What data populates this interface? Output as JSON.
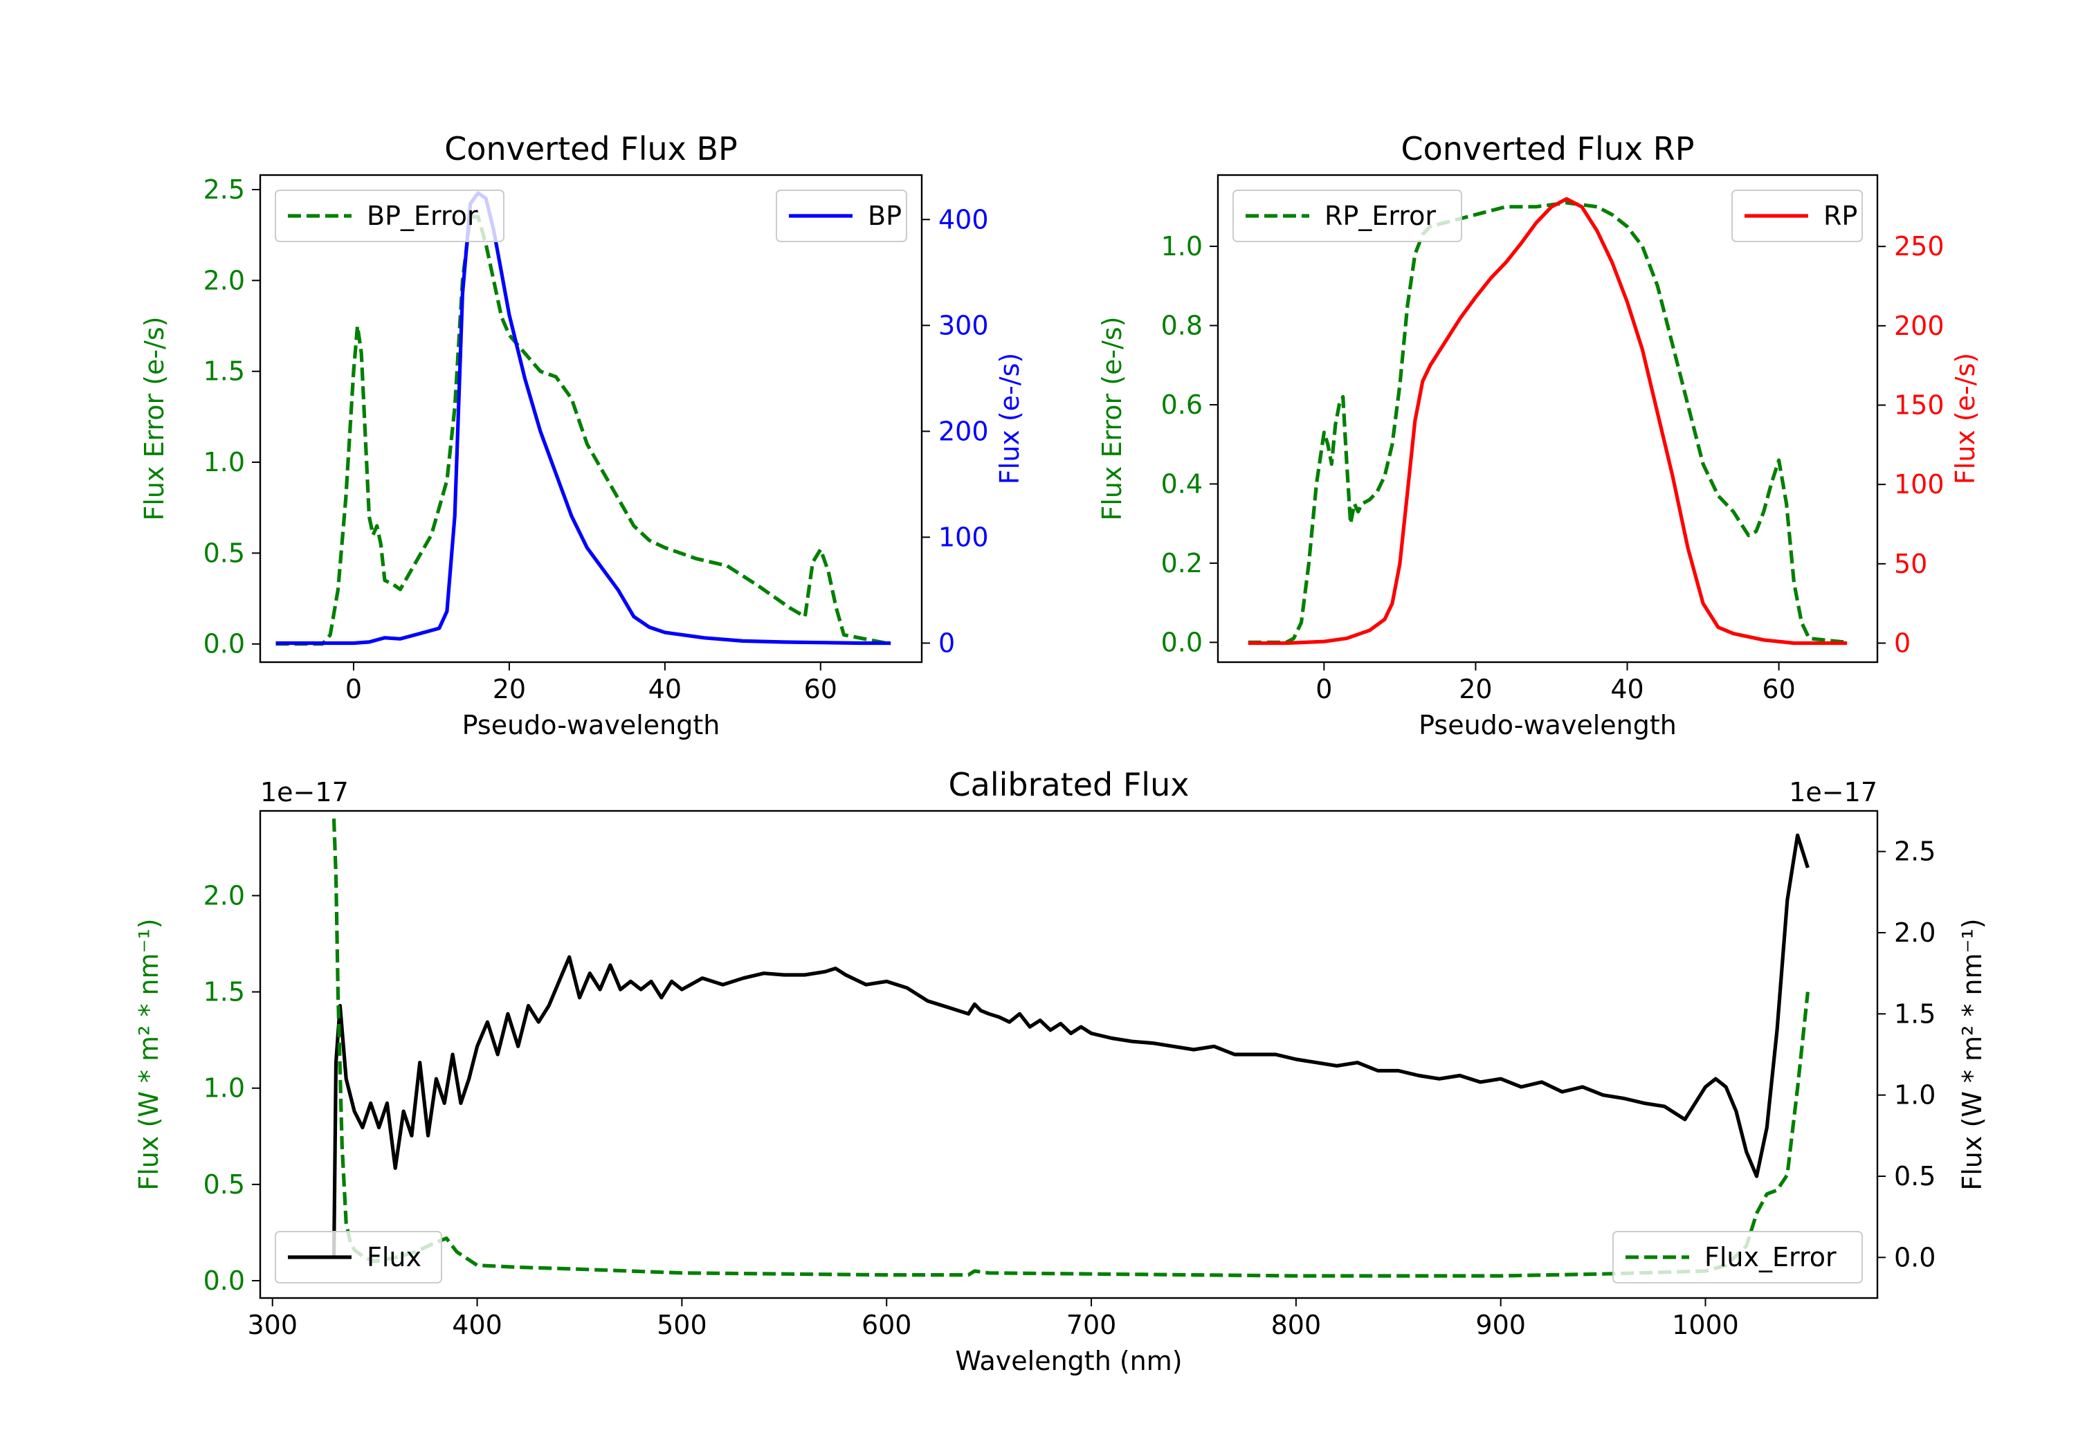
{
  "chart_data": [
    {
      "id": "bp",
      "type": "line",
      "title": "Converted Flux BP",
      "xlabel": "Pseudo-wavelength",
      "xlim": [
        -12,
        73
      ],
      "xticks": [
        0,
        20,
        40,
        60
      ],
      "left_axis": {
        "label": "Flux Error (e-/s)",
        "color": "#008000",
        "lim": [
          -0.1,
          2.58
        ],
        "ticks": [
          0.0,
          0.5,
          1.0,
          1.5,
          2.0,
          2.5
        ],
        "decimals": 1
      },
      "right_axis": {
        "label": "Flux (e-/s)",
        "color": "#0000ff",
        "lim": [
          -18,
          442
        ],
        "ticks": [
          0,
          100,
          200,
          300,
          400
        ],
        "decimals": 0
      },
      "series": [
        {
          "name": "BP_Error",
          "axis": "left",
          "color": "#008000",
          "dash": true,
          "x": [
            -10,
            -4,
            -3,
            -2,
            -1,
            0,
            0.5,
            1,
            2,
            2.5,
            3,
            3.5,
            4,
            5,
            6,
            8,
            10,
            12,
            13,
            14,
            15,
            16,
            17,
            18,
            19,
            20,
            22,
            24,
            26,
            28,
            30,
            32,
            34,
            36,
            38,
            40,
            44,
            48,
            52,
            56,
            58,
            59,
            60,
            61,
            62,
            63,
            69
          ],
          "values": [
            0.0,
            0.0,
            0.05,
            0.3,
            0.8,
            1.5,
            1.75,
            1.6,
            0.7,
            0.6,
            0.65,
            0.55,
            0.35,
            0.33,
            0.3,
            0.45,
            0.6,
            0.9,
            1.3,
            2.0,
            2.35,
            2.35,
            2.2,
            2.0,
            1.8,
            1.7,
            1.6,
            1.5,
            1.47,
            1.35,
            1.1,
            0.95,
            0.8,
            0.65,
            0.57,
            0.53,
            0.47,
            0.43,
            0.32,
            0.2,
            0.15,
            0.45,
            0.52,
            0.4,
            0.2,
            0.05,
            0.0
          ]
        },
        {
          "name": "BP",
          "axis": "right",
          "color": "#0000ff",
          "dash": false,
          "x": [
            -10,
            -5,
            0,
            2,
            4,
            6,
            8,
            10,
            11,
            12,
            13,
            14,
            15,
            16,
            17,
            18,
            19,
            20,
            22,
            24,
            26,
            28,
            30,
            32,
            34,
            36,
            38,
            40,
            45,
            50,
            55,
            60,
            65,
            69
          ],
          "values": [
            0,
            0,
            0,
            1,
            5,
            4,
            8,
            12,
            14,
            30,
            120,
            330,
            415,
            425,
            420,
            390,
            350,
            310,
            250,
            200,
            160,
            120,
            90,
            70,
            50,
            25,
            15,
            10,
            5,
            2,
            1,
            0.5,
            0,
            0
          ]
        }
      ],
      "legend": [
        {
          "label": "BP_Error",
          "position": "upper-left",
          "series": 0
        },
        {
          "label": "BP",
          "position": "upper-right",
          "series": 1
        }
      ]
    },
    {
      "id": "rp",
      "type": "line",
      "title": "Converted Flux RP",
      "xlabel": "Pseudo-wavelength",
      "xlim": [
        -14,
        73
      ],
      "xticks": [
        0,
        20,
        40,
        60
      ],
      "left_axis": {
        "label": "Flux Error (e-/s)",
        "color": "#008000",
        "lim": [
          -0.05,
          1.18
        ],
        "ticks": [
          0.0,
          0.2,
          0.4,
          0.6,
          0.8,
          1.0
        ],
        "decimals": 1
      },
      "right_axis": {
        "label": "Flux (e-/s)",
        "color": "#ff0000",
        "lim": [
          -12,
          295
        ],
        "ticks": [
          0,
          50,
          100,
          150,
          200,
          250
        ],
        "decimals": 0
      },
      "series": [
        {
          "name": "RP_Error",
          "axis": "left",
          "color": "#008000",
          "dash": true,
          "x": [
            -10,
            -5,
            -4,
            -3,
            -2,
            -1,
            0,
            0.5,
            1,
            1.5,
            2,
            2.5,
            3,
            3.5,
            4,
            4.5,
            5,
            6,
            7,
            8,
            9,
            10,
            11,
            12,
            13,
            14,
            16,
            20,
            24,
            28,
            32,
            36,
            38,
            40,
            42,
            44,
            46,
            48,
            50,
            52,
            54,
            55,
            56,
            57,
            58,
            59,
            60,
            61,
            62,
            63,
            64,
            69
          ],
          "values": [
            0,
            0,
            0.01,
            0.05,
            0.2,
            0.4,
            0.53,
            0.5,
            0.45,
            0.55,
            0.6,
            0.62,
            0.45,
            0.3,
            0.35,
            0.33,
            0.35,
            0.36,
            0.38,
            0.42,
            0.5,
            0.65,
            0.85,
            0.98,
            1.03,
            1.05,
            1.06,
            1.08,
            1.1,
            1.1,
            1.11,
            1.1,
            1.08,
            1.05,
            1.0,
            0.9,
            0.75,
            0.6,
            0.45,
            0.37,
            0.33,
            0.3,
            0.27,
            0.28,
            0.33,
            0.4,
            0.46,
            0.35,
            0.15,
            0.05,
            0.01,
            0
          ]
        },
        {
          "name": "RP",
          "axis": "right",
          "color": "#ff0000",
          "dash": false,
          "x": [
            -10,
            -5,
            0,
            3,
            6,
            8,
            9,
            10,
            11,
            12,
            13,
            14,
            16,
            18,
            20,
            22,
            24,
            26,
            28,
            30,
            32,
            34,
            36,
            38,
            40,
            42,
            44,
            46,
            48,
            50,
            52,
            54,
            58,
            62,
            65,
            69
          ],
          "values": [
            0,
            0,
            1,
            3,
            8,
            15,
            25,
            50,
            95,
            140,
            165,
            175,
            190,
            205,
            218,
            230,
            240,
            252,
            265,
            275,
            280,
            275,
            260,
            240,
            215,
            185,
            145,
            105,
            60,
            25,
            10,
            6,
            2,
            0,
            0,
            0
          ]
        }
      ],
      "legend": [
        {
          "label": "RP_Error",
          "position": "upper-left",
          "series": 0
        },
        {
          "label": "RP",
          "position": "upper-right",
          "series": 1
        }
      ]
    },
    {
      "id": "cal",
      "type": "line",
      "title": "Calibrated Flux",
      "xlabel": "Wavelength (nm)",
      "xlim": [
        294,
        1084
      ],
      "xticks": [
        300,
        400,
        500,
        600,
        700,
        800,
        900,
        1000
      ],
      "left_axis": {
        "label": "Flux (W * m² * nm⁻¹)",
        "color": "#008000",
        "lim": [
          -0.09,
          2.44
        ],
        "ticks": [
          0.0,
          0.5,
          1.0,
          1.5,
          2.0
        ],
        "decimals": 1,
        "offset": "1e−17"
      },
      "right_axis": {
        "label": "Flux (W * m² * nm⁻¹)",
        "color": "#000000",
        "lim": [
          -0.25,
          2.75
        ],
        "ticks": [
          0.0,
          0.5,
          1.0,
          1.5,
          2.0,
          2.5
        ],
        "decimals": 1,
        "offset": "1e−17"
      },
      "series": [
        {
          "name": "Flux",
          "axis": "right",
          "color": "#000000",
          "dash": false,
          "x": [
            330,
            331,
            333,
            336,
            340,
            344,
            348,
            352,
            356,
            360,
            364,
            368,
            372,
            376,
            380,
            384,
            388,
            392,
            396,
            400,
            405,
            410,
            415,
            420,
            425,
            430,
            435,
            440,
            445,
            450,
            455,
            460,
            465,
            470,
            475,
            480,
            485,
            490,
            495,
            500,
            510,
            520,
            530,
            540,
            550,
            560,
            570,
            575,
            580,
            590,
            600,
            610,
            620,
            630,
            640,
            643,
            646,
            650,
            655,
            660,
            665,
            670,
            675,
            680,
            685,
            690,
            695,
            700,
            710,
            720,
            730,
            740,
            750,
            760,
            770,
            780,
            790,
            800,
            810,
            820,
            830,
            840,
            850,
            860,
            870,
            880,
            890,
            900,
            910,
            920,
            930,
            940,
            950,
            960,
            970,
            980,
            990,
            1000,
            1005,
            1010,
            1015,
            1020,
            1025,
            1030,
            1035,
            1040,
            1045,
            1050
          ],
          "values": [
            0.0,
            1.2,
            1.55,
            1.1,
            0.9,
            0.8,
            0.95,
            0.8,
            0.95,
            0.55,
            0.9,
            0.75,
            1.2,
            0.75,
            1.1,
            0.95,
            1.25,
            0.95,
            1.1,
            1.3,
            1.45,
            1.25,
            1.5,
            1.3,
            1.55,
            1.45,
            1.55,
            1.7,
            1.85,
            1.6,
            1.75,
            1.65,
            1.8,
            1.65,
            1.7,
            1.65,
            1.7,
            1.6,
            1.7,
            1.65,
            1.72,
            1.68,
            1.72,
            1.75,
            1.74,
            1.74,
            1.76,
            1.78,
            1.74,
            1.68,
            1.7,
            1.66,
            1.58,
            1.54,
            1.5,
            1.56,
            1.52,
            1.5,
            1.48,
            1.45,
            1.5,
            1.42,
            1.46,
            1.4,
            1.44,
            1.38,
            1.42,
            1.38,
            1.35,
            1.33,
            1.32,
            1.3,
            1.28,
            1.3,
            1.25,
            1.25,
            1.25,
            1.22,
            1.2,
            1.18,
            1.2,
            1.15,
            1.15,
            1.12,
            1.1,
            1.12,
            1.08,
            1.1,
            1.05,
            1.08,
            1.02,
            1.05,
            1.0,
            0.98,
            0.95,
            0.93,
            0.85,
            1.05,
            1.1,
            1.05,
            0.9,
            0.65,
            0.5,
            0.8,
            1.4,
            2.2,
            2.6,
            2.4
          ]
        },
        {
          "name": "Flux_Error",
          "axis": "left",
          "color": "#008000",
          "dash": true,
          "x": [
            330,
            331,
            332,
            334,
            336,
            338,
            340,
            345,
            350,
            360,
            370,
            380,
            385,
            390,
            400,
            420,
            450,
            500,
            550,
            600,
            640,
            643,
            650,
            700,
            750,
            800,
            850,
            900,
            950,
            1000,
            1010,
            1020,
            1025,
            1030,
            1035,
            1040,
            1045,
            1050
          ],
          "values": [
            2.4,
            2.1,
            1.5,
            0.7,
            0.3,
            0.2,
            0.16,
            0.12,
            0.1,
            0.12,
            0.15,
            0.2,
            0.22,
            0.15,
            0.08,
            0.07,
            0.06,
            0.04,
            0.035,
            0.03,
            0.03,
            0.05,
            0.04,
            0.035,
            0.03,
            0.025,
            0.025,
            0.025,
            0.035,
            0.05,
            0.08,
            0.18,
            0.35,
            0.45,
            0.47,
            0.55,
            1.0,
            1.5
          ]
        }
      ],
      "legend": [
        {
          "label": "Flux",
          "position": "lower-left",
          "series": 0
        },
        {
          "label": "Flux_Error",
          "position": "lower-right",
          "series": 1
        }
      ]
    }
  ]
}
